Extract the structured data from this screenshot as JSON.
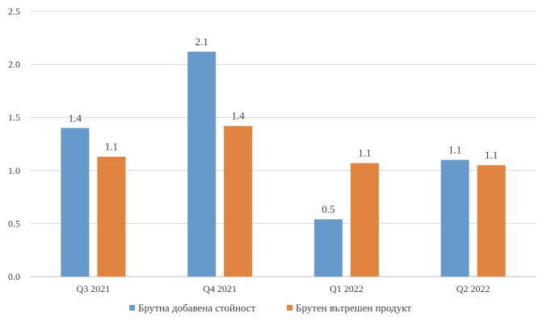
{
  "chart_data": {
    "type": "bar",
    "categories": [
      "Q3 2021",
      "Q4 2021",
      "Q1 2022",
      "Q2 2022"
    ],
    "series": [
      {
        "name": "Брутна добавена стойност",
        "color": "#6699cc",
        "values": [
          1.4,
          2.12,
          0.54,
          1.1
        ],
        "labels": [
          "1.4",
          "2.1",
          "0.5",
          "1.1"
        ]
      },
      {
        "name": "Брутен вътрешен продукт",
        "color": "#e0843f",
        "values": [
          1.13,
          1.42,
          1.07,
          1.05
        ],
        "labels": [
          "1.1",
          "1.4",
          "1.1",
          "1.1"
        ]
      }
    ],
    "ylim": [
      0,
      2.5
    ],
    "yticks": [
      "0.0",
      "0.5",
      "1.0",
      "1.5",
      "2.0",
      "2.5"
    ],
    "grid": true,
    "legend_position": "bottom",
    "gridline_color": "#d9d9d9",
    "axis_color": "#bfbfbf"
  }
}
